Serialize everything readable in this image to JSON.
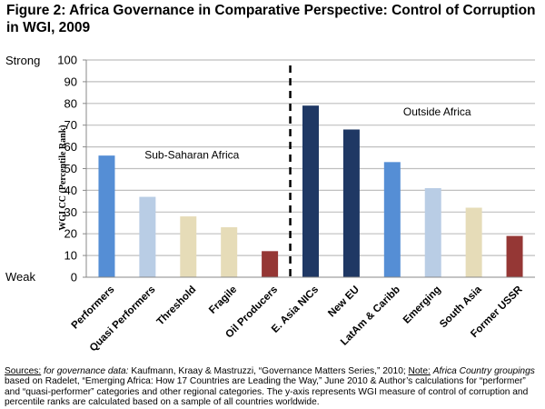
{
  "figure": {
    "title": "Figure 2: Africa Governance in Comparative Perspective: Control of Corruption in WGI, 2009",
    "strong_label": "Strong",
    "weak_label": "Weak"
  },
  "chart_data": {
    "type": "bar",
    "title": "Figure 2: Africa Governance in Comparative Perspective: Control of Corruption in WGI, 2009",
    "xlabel": "",
    "ylabel": "WGI CC (Percentile Rank)",
    "ylim": [
      0,
      100
    ],
    "yticks": [
      0,
      10,
      20,
      30,
      40,
      50,
      60,
      70,
      80,
      90,
      100
    ],
    "grid": true,
    "categories": [
      "Performers",
      "Quasi Performers",
      "Threshold",
      "Fragile",
      "Oil Producers",
      "E. Asia NICs",
      "New EU",
      "LatAm & Caribb",
      "Emerging",
      "South Asia",
      "Former USSR"
    ],
    "values": [
      56,
      37,
      28,
      23,
      12,
      79,
      68,
      53,
      41,
      32,
      19
    ],
    "bar_colors": [
      "#558ed5",
      "#b9cde5",
      "#e6dcb8",
      "#e6dcb8",
      "#953735",
      "#1f3864",
      "#1f3864",
      "#558ed5",
      "#b9cde5",
      "#e6dcb8",
      "#953735"
    ],
    "groups": [
      {
        "label": "Sub-Saharan Africa",
        "categories": [
          "Performers",
          "Quasi Performers",
          "Threshold",
          "Fragile",
          "Oil Producers"
        ]
      },
      {
        "label": "Outside Africa",
        "categories": [
          "E. Asia NICs",
          "New EU",
          "LatAm & Caribb",
          "Emerging",
          "South Asia",
          "Former USSR"
        ]
      }
    ],
    "divider": "dashed vertical line between Oil Producers and E. Asia NICs",
    "legend": "none"
  },
  "notes": {
    "sources_label": "Sources:",
    "sources_italic": "for governance data:",
    "sources_text": " Kaufmann, Kraay & Mastruzzi, “Governance Matters Series,” 2010;",
    "note_label": "Note:",
    "note_italic": "Africa Country groupings",
    "note_text": " based on Radelet, “Emerging Africa: How 17 Countries are Leading the Way,” June 2010 & Author’s calculations for “performer” and “quasi-performer” categories and other regional categories.  The y-axis represents WGI measure of control of corruption and percentile ranks are calculated based on a sample of all countries worldwide."
  }
}
